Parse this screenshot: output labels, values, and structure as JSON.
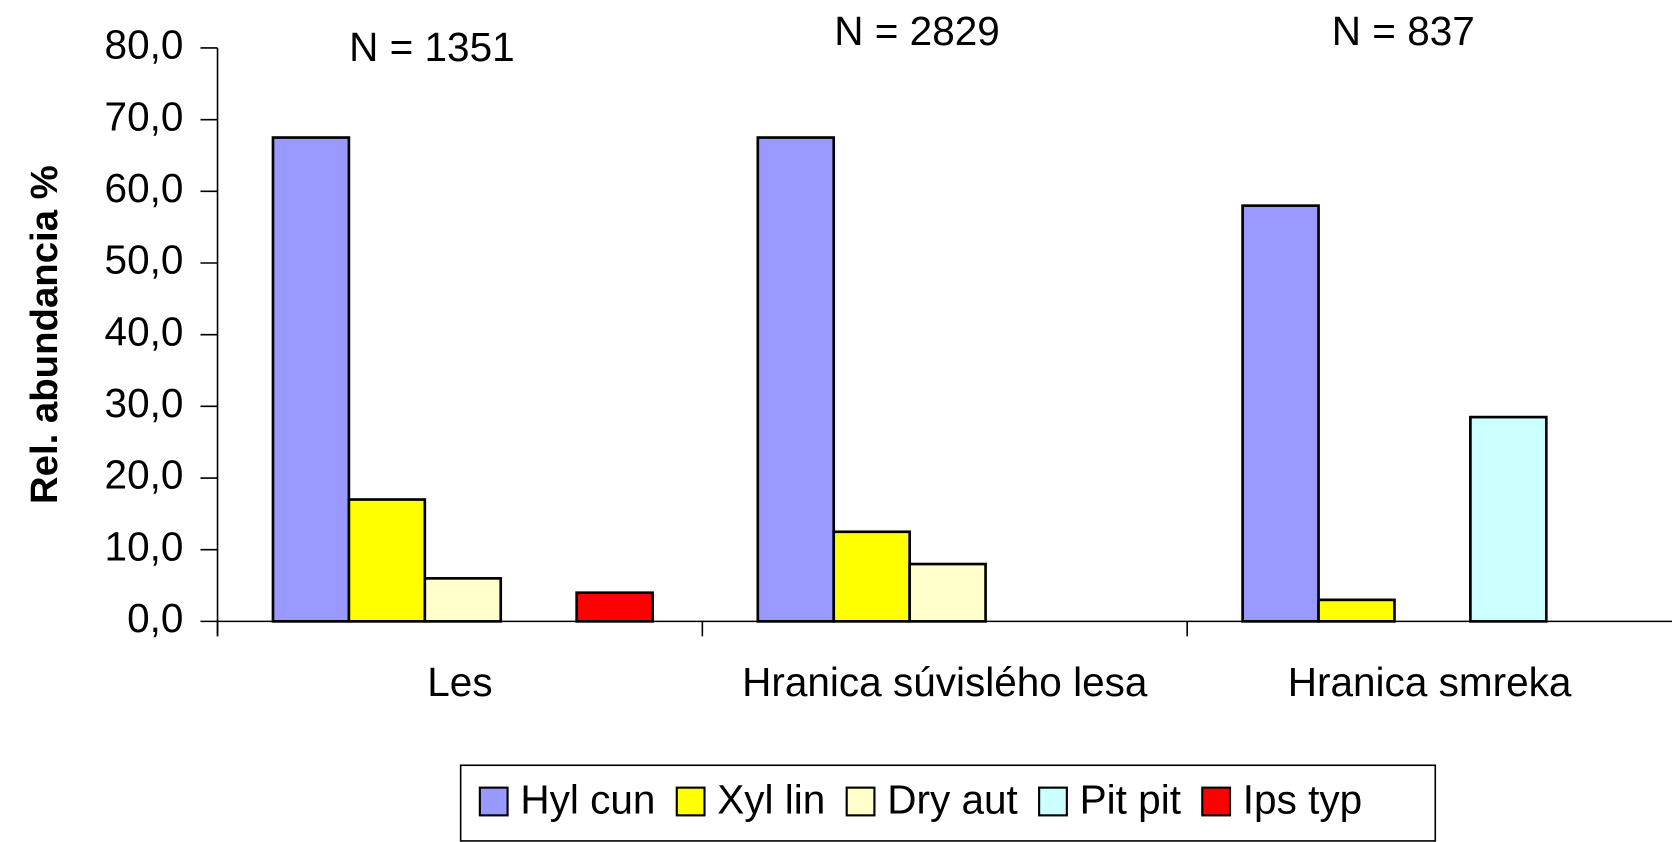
{
  "chart_data": {
    "type": "bar",
    "ylabel": "Rel. abundancia %",
    "annotations": [
      "N = 1351",
      "N = 2829",
      "N = 837"
    ],
    "categories": [
      "Les",
      "Hranica súvislého lesa",
      "Hranica smreka"
    ],
    "series": [
      {
        "name": "Hyl cun",
        "color": "#9999ff",
        "values": [
          67.5,
          67.5,
          58
        ]
      },
      {
        "name": "Xyl lin",
        "color": "#ffff00",
        "values": [
          17,
          12.5,
          3
        ]
      },
      {
        "name": "Dry aut",
        "color": "#ffffcc",
        "values": [
          6,
          8,
          null
        ]
      },
      {
        "name": "Pit pit",
        "color": "#ccffff",
        "values": [
          null,
          null,
          28.5
        ]
      },
      {
        "name": "Ips typ",
        "color": "#ff0000",
        "values": [
          4,
          null,
          null
        ]
      }
    ],
    "ylim": [
      0,
      80
    ],
    "yticks": [
      {
        "value": 0,
        "label": "0,0"
      },
      {
        "value": 10,
        "label": "10,0"
      },
      {
        "value": 20,
        "label": "20,0"
      },
      {
        "value": 30,
        "label": "30,0"
      },
      {
        "value": 40,
        "label": "40,0"
      },
      {
        "value": 50,
        "label": "50,0"
      },
      {
        "value": 60,
        "label": "60,0"
      },
      {
        "value": 70,
        "label": "70,0"
      },
      {
        "value": 80,
        "label": "80,0"
      }
    ],
    "legend": "bottom"
  }
}
